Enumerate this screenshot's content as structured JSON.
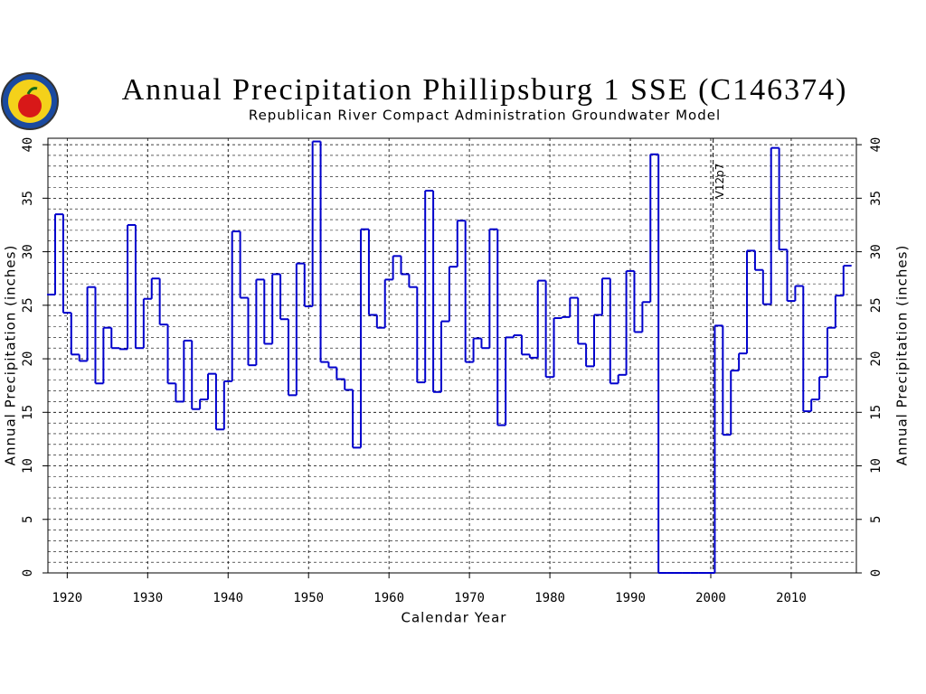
{
  "chart_data": {
    "type": "step",
    "title": "Annual Precipitation Phillipsburg 1 SSE (C146374)",
    "subtitle": "Republican River Compact Administration Groundwater Model",
    "xlabel": "Calendar Year",
    "ylabel": "Annual Precipitation (inches)",
    "annotation": {
      "text": "V12p7",
      "x": 2000.3
    },
    "xlim": [
      1917.6,
      2018.1
    ],
    "ylim": [
      0,
      40.6
    ],
    "xticks": [
      1920,
      1930,
      1940,
      1950,
      1960,
      1970,
      1980,
      1990,
      2000,
      2010
    ],
    "yticks": [
      0,
      5,
      10,
      15,
      20,
      25,
      30,
      35,
      40
    ],
    "yminor": [
      1,
      2,
      3,
      4,
      6,
      7,
      8,
      9,
      11,
      12,
      13,
      14,
      16,
      17,
      18,
      19,
      21,
      22,
      23,
      24,
      26,
      27,
      28,
      29,
      31,
      32,
      33,
      34,
      36,
      37,
      38,
      39
    ],
    "grid": true,
    "x": [
      1918,
      1919,
      1920,
      1921,
      1922,
      1923,
      1924,
      1925,
      1926,
      1927,
      1928,
      1929,
      1930,
      1931,
      1932,
      1933,
      1934,
      1935,
      1936,
      1937,
      1938,
      1939,
      1940,
      1941,
      1942,
      1943,
      1944,
      1945,
      1946,
      1947,
      1948,
      1949,
      1950,
      1951,
      1952,
      1953,
      1954,
      1955,
      1956,
      1957,
      1958,
      1959,
      1960,
      1961,
      1962,
      1963,
      1964,
      1965,
      1966,
      1967,
      1968,
      1969,
      1970,
      1971,
      1972,
      1973,
      1974,
      1975,
      1976,
      1977,
      1978,
      1979,
      1980,
      1981,
      1982,
      1983,
      1984,
      1985,
      1986,
      1987,
      1988,
      1989,
      1990,
      1991,
      1992,
      1993,
      1994,
      1995,
      1996,
      1997,
      1998,
      1999,
      2000,
      2001,
      2002,
      2003,
      2004,
      2005,
      2006,
      2007,
      2008,
      2009,
      2010,
      2011,
      2012,
      2013,
      2014,
      2015,
      2016,
      2017
    ],
    "series": [
      {
        "name": "Annual Precipitation",
        "color": "#0000cc",
        "values": [
          26,
          33.5,
          24.3,
          20.4,
          19.8,
          26.7,
          17.7,
          22.9,
          21,
          20.9,
          32.5,
          21,
          25.6,
          27.5,
          23.2,
          17.7,
          16,
          21.7,
          15.3,
          16.2,
          18.6,
          13.4,
          17.9,
          31.9,
          25.7,
          19.4,
          27.4,
          21.4,
          27.9,
          23.7,
          16.6,
          28.9,
          24.9,
          40.3,
          19.7,
          19.2,
          18.1,
          17.1,
          11.7,
          32.1,
          24.1,
          22.9,
          27.4,
          29.6,
          27.9,
          26.7,
          17.8,
          35.7,
          16.9,
          23.5,
          28.6,
          32.9,
          19.7,
          21.9,
          21,
          32.1,
          13.8,
          22,
          22.2,
          20.4,
          20.1,
          27.3,
          18.3,
          23.8,
          23.9,
          25.7,
          21.4,
          19.3,
          24.1,
          27.5,
          17.7,
          18.5,
          28.2,
          22.5,
          25.3,
          39.1,
          0,
          0,
          0,
          0,
          0,
          0,
          0,
          23.1,
          12.9,
          18.9,
          20.5,
          30.1,
          28.3,
          25.1,
          39.7,
          30.2,
          25.4,
          26.8,
          15.1,
          16.2,
          18.3,
          22.9,
          25.9,
          28.7
        ]
      }
    ]
  }
}
